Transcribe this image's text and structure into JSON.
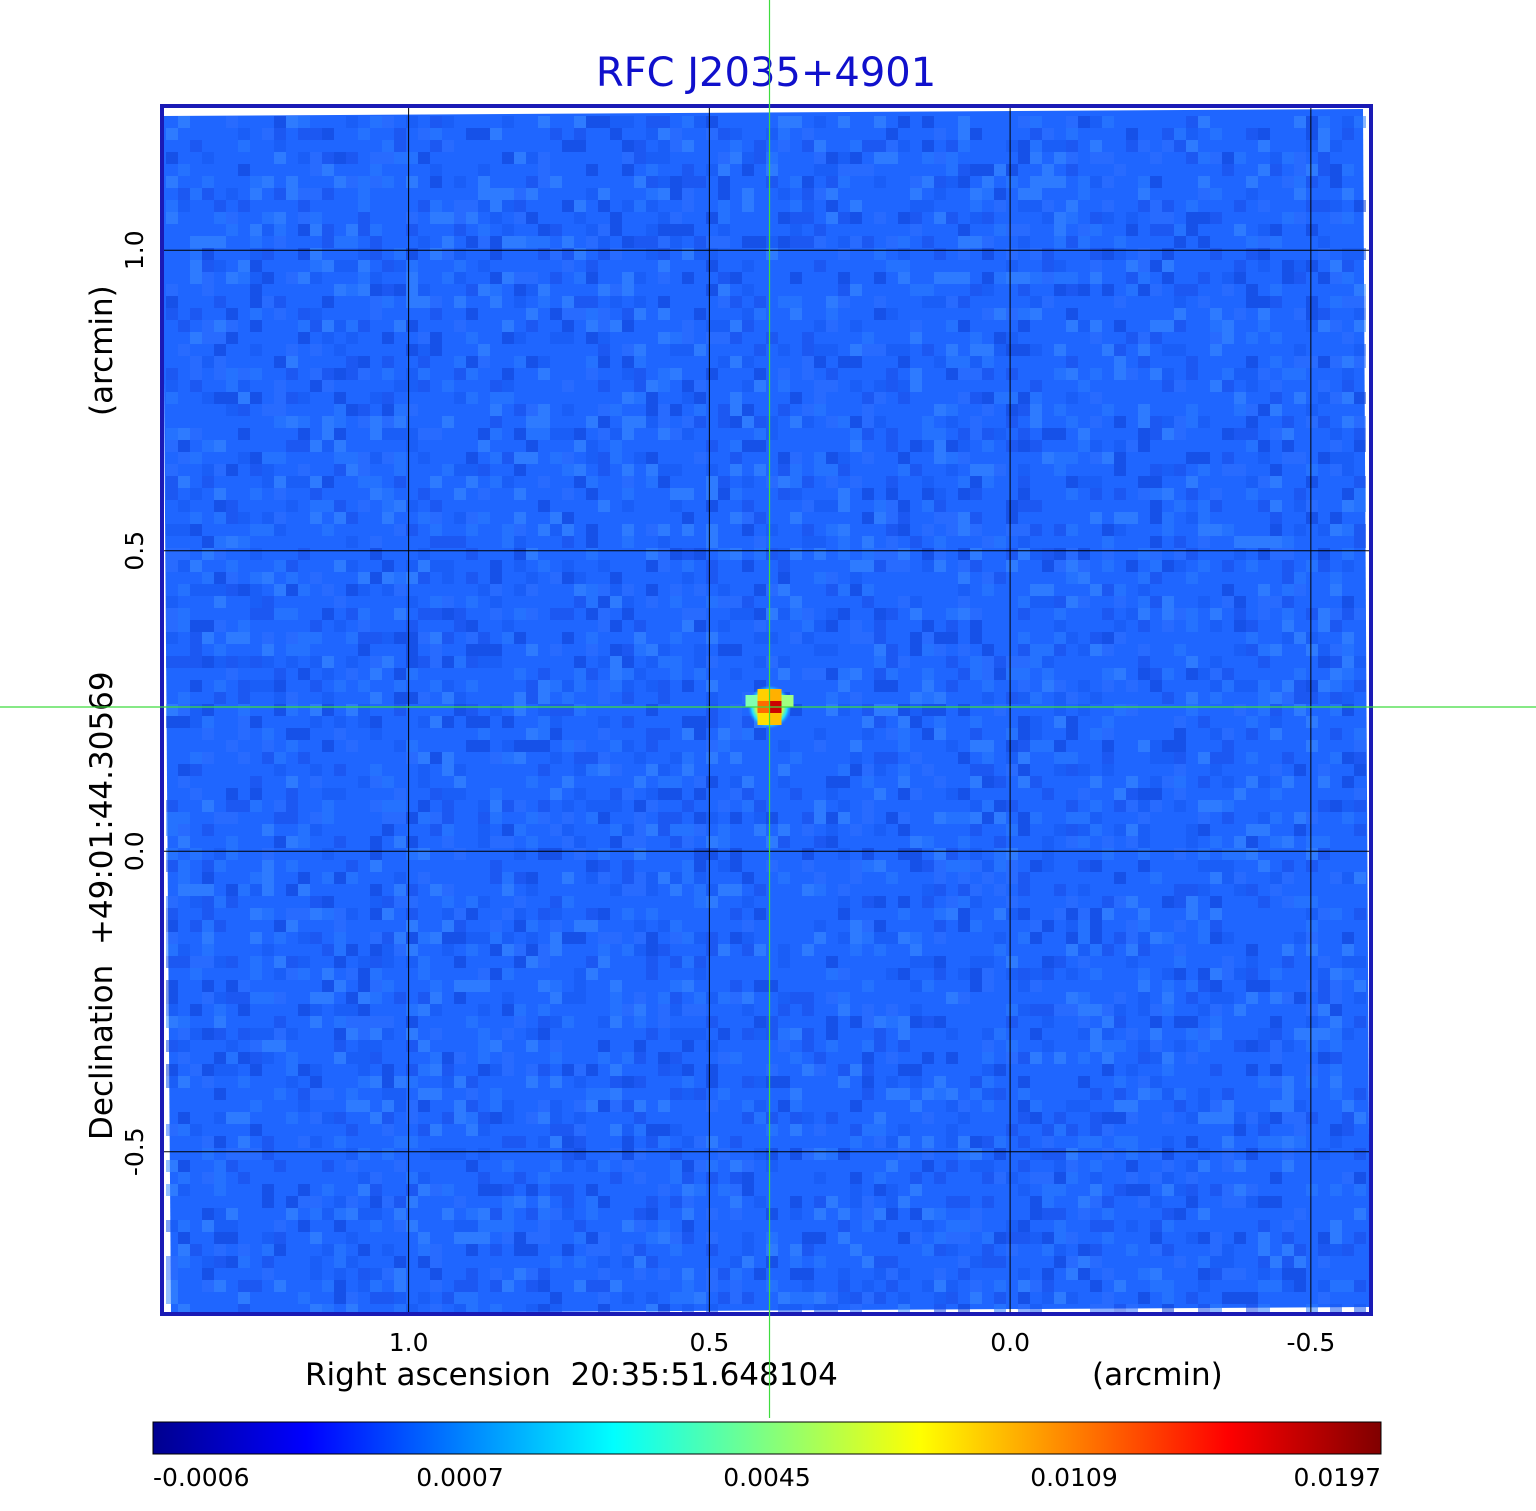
{
  "chart_data": {
    "type": "heatmap",
    "title": "RFC J2035+4901",
    "xlabel": "Right ascension  20:35:51.648104",
    "xunit": "(arcmin)",
    "ylabel": "Declination  +49:01:44.30569",
    "yunit": "(arcmin)",
    "xlim": [
      1.41,
      -0.6
    ],
    "ylim": [
      -0.77,
      1.24
    ],
    "xticks": [
      1.0,
      0.5,
      0.0,
      -0.5
    ],
    "xtick_labels": [
      "1.0",
      "0.5",
      "0.0",
      "-0.5"
    ],
    "yticks": [
      1.0,
      0.5,
      0.0,
      -0.5
    ],
    "ytick_labels": [
      "1.0",
      "0.5",
      "0.0",
      "-0.5"
    ],
    "grid": true,
    "crosshair": {
      "x": 0.4,
      "y": 0.24,
      "color": "#3fdc3f"
    },
    "peak": {
      "x": 0.4,
      "y": 0.24,
      "value": 0.0197
    },
    "colorbar": {
      "position": "bottom",
      "tick_labels": [
        "-0.0006",
        "0.0007",
        "0.0045",
        "0.0109",
        "0.0197"
      ],
      "colors": [
        "#00008f",
        "#0000ff",
        "#0080ff",
        "#00ffff",
        "#80ff80",
        "#ffff00",
        "#ff8000",
        "#ff0000",
        "#800000"
      ]
    },
    "background_color": "#1f66ff",
    "frame_color": "#1a1ab5"
  }
}
